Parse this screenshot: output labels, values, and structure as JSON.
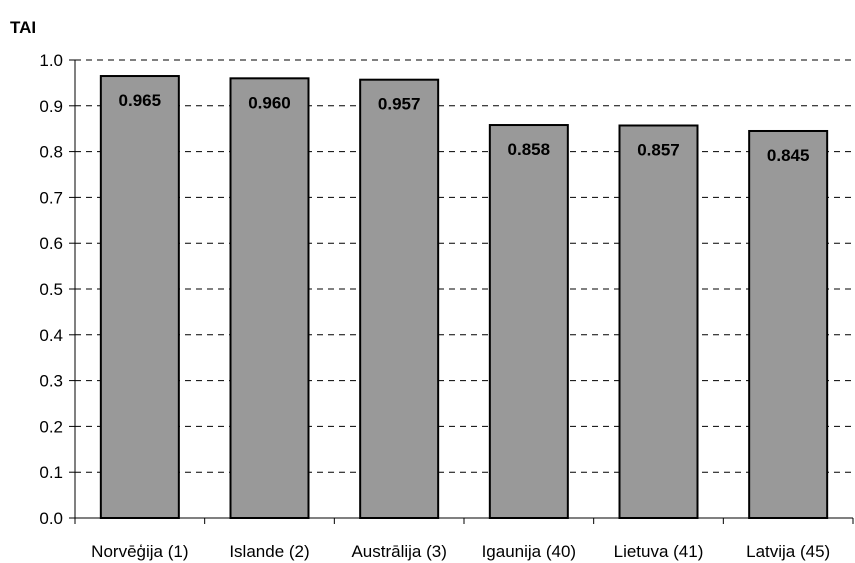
{
  "chart_data": {
    "type": "bar",
    "ylabel": "TAI",
    "categories": [
      "Norvēģija (1)",
      "Islande (2)",
      "Austrālija (3)",
      "Igaunija (40)",
      "Lietuva (41)",
      "Latvija (45)"
    ],
    "values": [
      0.965,
      0.96,
      0.957,
      0.858,
      0.857,
      0.845
    ],
    "data_labels": [
      "0.965",
      "0.960",
      "0.957",
      "0.858",
      "0.857",
      "0.845"
    ],
    "ylim": [
      0.0,
      1.0
    ],
    "yticks": [
      "0.0",
      "0.1",
      "0.2",
      "0.3",
      "0.4",
      "0.5",
      "0.6",
      "0.7",
      "0.8",
      "0.9",
      "1.0"
    ],
    "grid": "dashed horizontal",
    "legend": "none",
    "bar_color": "#999999"
  }
}
